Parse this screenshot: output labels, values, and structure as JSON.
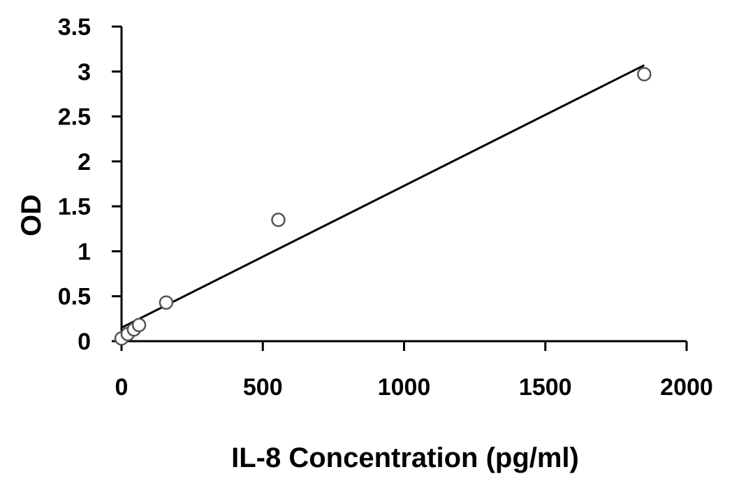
{
  "chart_data": {
    "type": "scatter",
    "title": "",
    "xlabel": "IL-8 Concentration (pg/ml)",
    "ylabel": "OD",
    "xlim": [
      0,
      2000
    ],
    "ylim": [
      0,
      3.5
    ],
    "xticks": [
      0,
      500,
      1000,
      1500,
      2000
    ],
    "yticks": [
      0,
      0.5,
      1,
      1.5,
      2,
      2.5,
      3,
      3.5
    ],
    "xtick_labels": [
      "0",
      "500",
      "1000",
      "1500",
      "2000"
    ],
    "ytick_labels": [
      "0",
      "0.5",
      "1",
      "1.5",
      "2",
      "2.5",
      "3",
      "3.5"
    ],
    "grid": false,
    "legend": "none",
    "marker": "open-circle",
    "marker_stroke": "#555555",
    "line_color": "#000000",
    "series": [
      {
        "points": [
          {
            "x": 0,
            "y": 0.03
          },
          {
            "x": 22,
            "y": 0.08
          },
          {
            "x": 44,
            "y": 0.13
          },
          {
            "x": 62,
            "y": 0.18
          },
          {
            "x": 158,
            "y": 0.43
          },
          {
            "x": 555,
            "y": 1.35
          },
          {
            "x": 1850,
            "y": 2.97
          }
        ],
        "trendline": {
          "type": "linear",
          "x_start": 0,
          "y_start": 0.15,
          "x_end": 1850,
          "y_end": 3.07
        }
      }
    ]
  }
}
